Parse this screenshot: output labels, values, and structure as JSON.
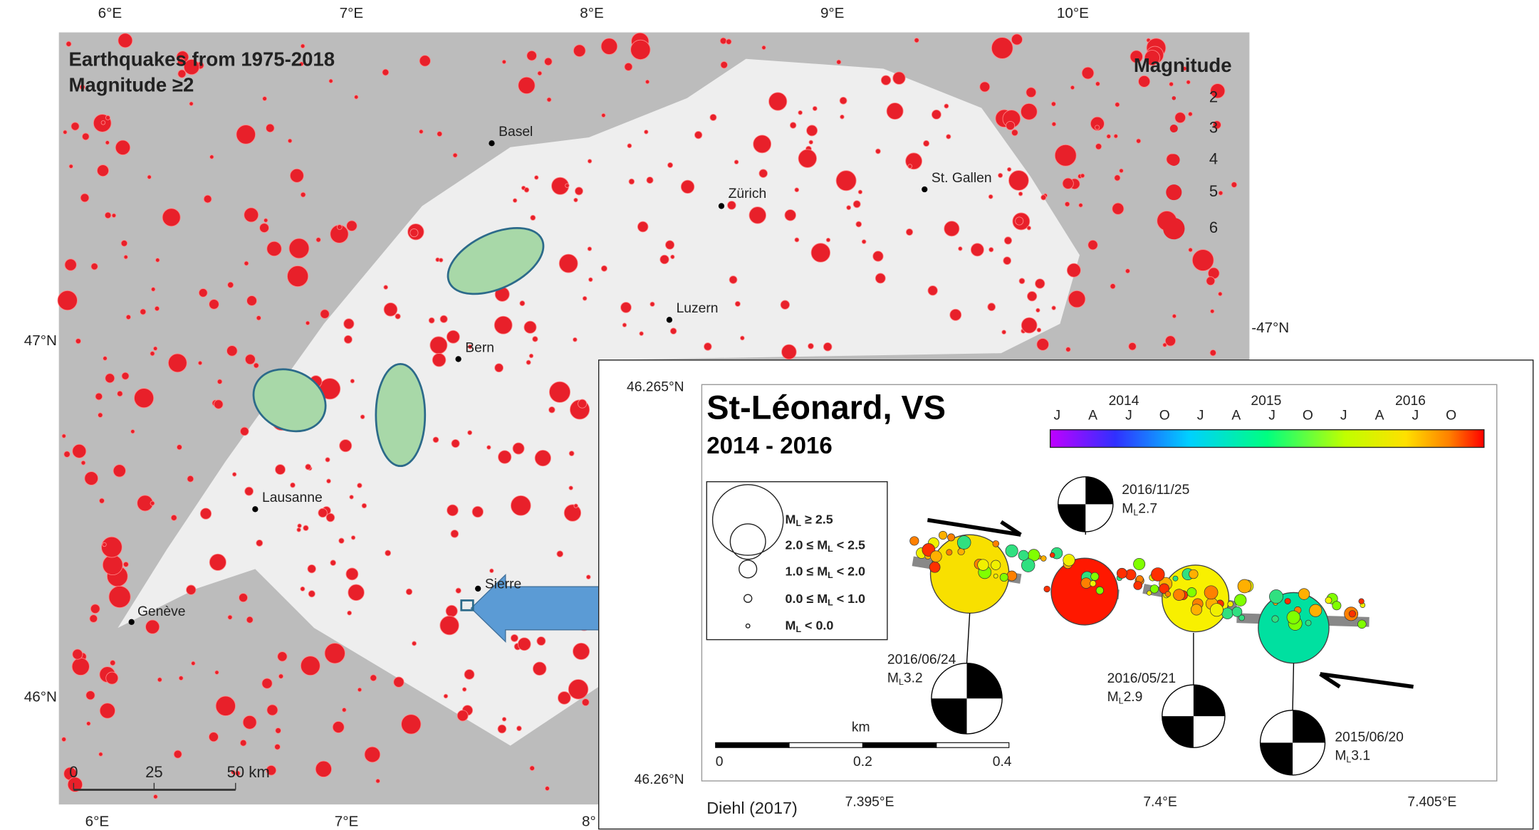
{
  "map": {
    "title": [
      "Earthquakes from 1975-2018",
      "Magnitude ≥2"
    ],
    "lon_labels": [
      "6°E",
      "7°E",
      "8°E",
      "9°E",
      "10°E"
    ],
    "lat_labels": [
      "47°N",
      "46°N"
    ],
    "right_lat_label": "-47°N",
    "bottom_lon_labels": [
      "6°E",
      "7°E",
      "8°"
    ],
    "cities": [
      "Basel",
      "Zürich",
      "St. Gallen",
      "Luzern",
      "Bern",
      "Lausanne",
      "Sierre",
      "Genève"
    ],
    "legend": {
      "title": "Magnitude",
      "items": [
        "2",
        "3",
        "4",
        "5",
        "6"
      ]
    },
    "scale": [
      "0",
      "25",
      "50 km"
    ]
  },
  "inset": {
    "title": "St-Léonard, VS",
    "subtitle": "2014 - 2016",
    "y_labels": [
      "46.265°N",
      "46.26°N"
    ],
    "x_labels": [
      "7.395°E",
      "7.4°E",
      "7.405°E"
    ],
    "years": [
      "2014",
      "2015",
      "2016"
    ],
    "months": [
      "J",
      "A",
      "J",
      "O",
      "J",
      "A",
      "J",
      "O",
      "J",
      "A",
      "J",
      "O"
    ],
    "legend": [
      [
        "M",
        "L",
        " ≥ 2.5"
      ],
      [
        "2.0 ≤ M",
        "L",
        " < 2.5"
      ],
      [
        "1.0 ≤ M",
        "L",
        " < 2.0"
      ],
      [
        "0.0 ≤ M",
        "L",
        " < 1.0"
      ],
      [
        "M",
        "L",
        " < 0.0"
      ]
    ],
    "events": [
      {
        "date": "2016/11/25",
        "mag": [
          "M",
          "L",
          "2.7"
        ]
      },
      {
        "date": "2016/06/24",
        "mag": [
          "M",
          "L",
          "3.2"
        ]
      },
      {
        "date": "2016/05/21",
        "mag": [
          "M",
          "L",
          "2.9"
        ]
      },
      {
        "date": "2015/06/20",
        "mag": [
          "M",
          "L",
          "3.1"
        ]
      }
    ],
    "scale": {
      "unit": "km",
      "ticks": [
        "0",
        "0.2",
        "0.4"
      ]
    },
    "credit": "Diehl (2017)"
  }
}
